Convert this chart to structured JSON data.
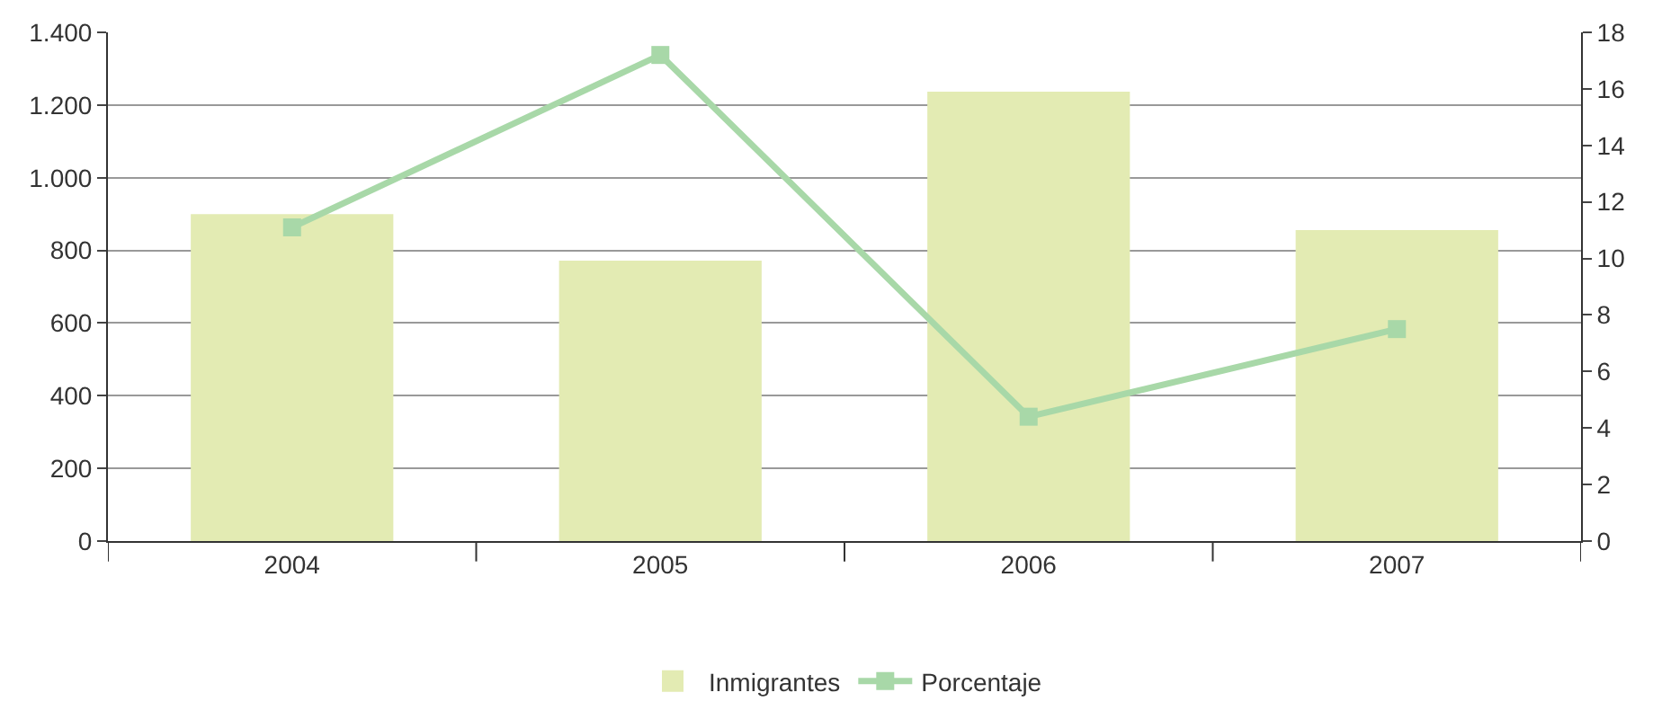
{
  "chart_data": {
    "type": "bar",
    "categories": [
      "2004",
      "2005",
      "2006",
      "2007"
    ],
    "series": [
      {
        "name": "Inmigrantes",
        "color": "#e3ebb3",
        "values": [
          900,
          772,
          1237,
          856
        ]
      },
      {
        "name": "Porcentaje",
        "type": "line",
        "axis": "y2",
        "color": "#a8d8a8",
        "values": [
          11.1,
          17.2,
          4.4,
          7.5
        ]
      }
    ],
    "ylim": [
      0,
      1400
    ],
    "yticks": [
      0,
      200,
      400,
      600,
      800,
      {
        "value": 1000,
        "label": "1.000"
      },
      {
        "value": 1200,
        "label": "1.200"
      },
      {
        "value": 1400,
        "label": "1.400"
      }
    ],
    "y2lim": [
      0,
      18
    ],
    "y2ticks": [
      0,
      2,
      4,
      6,
      8,
      10,
      12,
      14,
      16,
      18
    ],
    "grid": "y",
    "legend": "bottom",
    "marker": "square",
    "line_style": "solid"
  }
}
